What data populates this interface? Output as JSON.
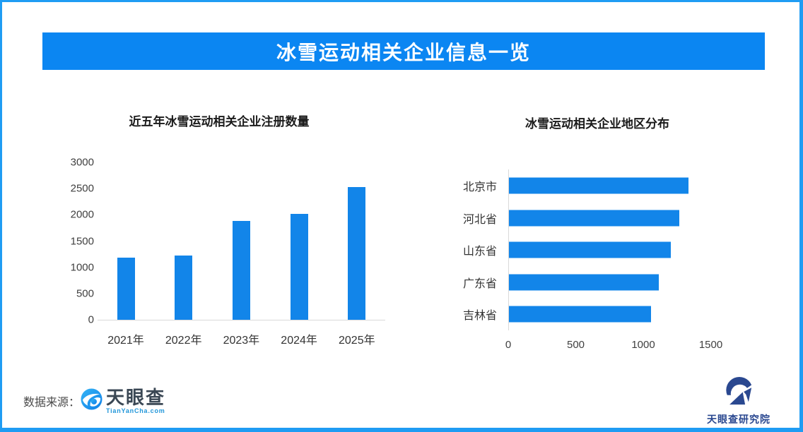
{
  "banner": {
    "title": "冰雪运动相关企业信息一览"
  },
  "chart_data": [
    {
      "type": "bar",
      "orientation": "vertical",
      "title": "近五年冰雪运动相关企业注册数量",
      "categories": [
        "2021年",
        "2022年",
        "2023年",
        "2024年",
        "2025年"
      ],
      "values": [
        1180,
        1230,
        1880,
        2020,
        2530
      ],
      "xlabel": "",
      "ylabel": "",
      "ylim": [
        0,
        3000
      ],
      "yticks": [
        0,
        500,
        1000,
        1500,
        2000,
        2500,
        3000
      ],
      "grid": false,
      "legend": "none",
      "bar_color": "#1285e9"
    },
    {
      "type": "bar",
      "orientation": "horizontal",
      "title": "冰雪运动相关企业地区分布",
      "categories": [
        "北京市",
        "河北省",
        "山东省",
        "广东省",
        "吉林省"
      ],
      "values": [
        1330,
        1260,
        1200,
        1110,
        1050
      ],
      "xlabel": "",
      "ylabel": "",
      "xlim": [
        0,
        1750
      ],
      "xticks": [
        0,
        500,
        1000,
        1500
      ],
      "grid": false,
      "legend": "none",
      "bar_color": "#1285e9"
    }
  ],
  "footer": {
    "source_label": "数据来源：",
    "tianyancha": {
      "name": "天眼查",
      "domain": "TianYanCha.com"
    },
    "institute": {
      "name": "天眼查研究院"
    }
  },
  "colors": {
    "banner_blue": "#0b86f2",
    "bar_blue": "#1285e9",
    "frame_blue": "#1f9cf3",
    "axis_line_gray": "#d9d9d9",
    "banner_text": "#ffffff",
    "chart_title_text": "#1a1a1a",
    "tianyancha_text": "#3a4754",
    "tianyancha_domain_blue": "#2196d9",
    "institute_navy": "#2a4890"
  }
}
